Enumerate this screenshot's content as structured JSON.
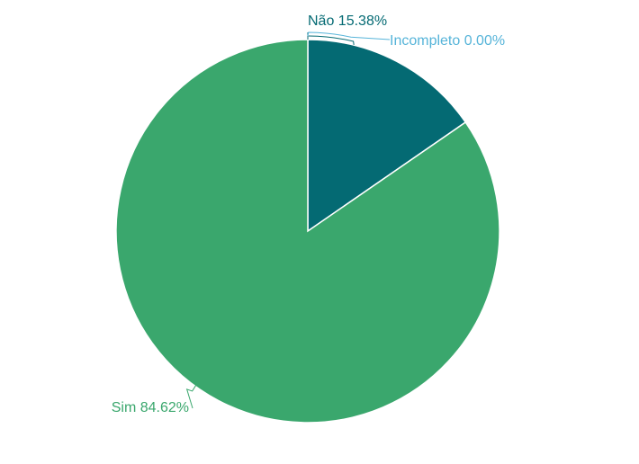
{
  "chart_data": {
    "type": "pie",
    "title": "",
    "slices": [
      {
        "name": "Não",
        "value": 15.38,
        "label": "Não 15.38%",
        "color": "#046a73"
      },
      {
        "name": "Incompleto",
        "value": 0.0,
        "label": "Incompleto 0.00%",
        "color": "#56b4d9"
      },
      {
        "name": "Sim",
        "value": 84.62,
        "label": "Sim 84.62%",
        "color": "#3aa76d"
      }
    ],
    "start_angle_deg": 0,
    "direction": "clockwise",
    "slice_border_color": "#ffffff",
    "legend": "none"
  }
}
